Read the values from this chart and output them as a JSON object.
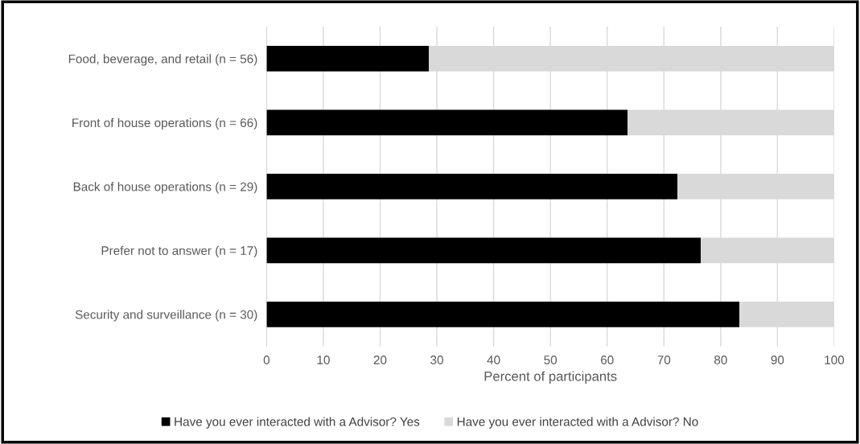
{
  "chart_data": {
    "type": "bar",
    "orientation": "horizontal",
    "stacked": true,
    "categories": [
      "Food, beverage, and retail (n = 56)",
      "Front of house operations (n = 66)",
      "Back of house operations (n = 29)",
      "Prefer not to answer (n = 17)",
      "Security and surveillance (n = 30)"
    ],
    "series": [
      {
        "name": "Have you ever interacted with a Advisor? Yes",
        "color": "#000000",
        "values": [
          28.6,
          63.6,
          72.4,
          76.5,
          83.3
        ]
      },
      {
        "name": "Have you ever interacted with a Advisor? No",
        "color": "#d9d9d9",
        "values": [
          71.4,
          36.4,
          27.6,
          23.5,
          16.7
        ]
      }
    ],
    "xlabel": "Percent of participants",
    "xlim": [
      0,
      100
    ],
    "xticks": [
      0,
      10,
      20,
      30,
      40,
      50,
      60,
      70,
      80,
      90,
      100
    ],
    "grid": "x",
    "legend": "bottom"
  }
}
